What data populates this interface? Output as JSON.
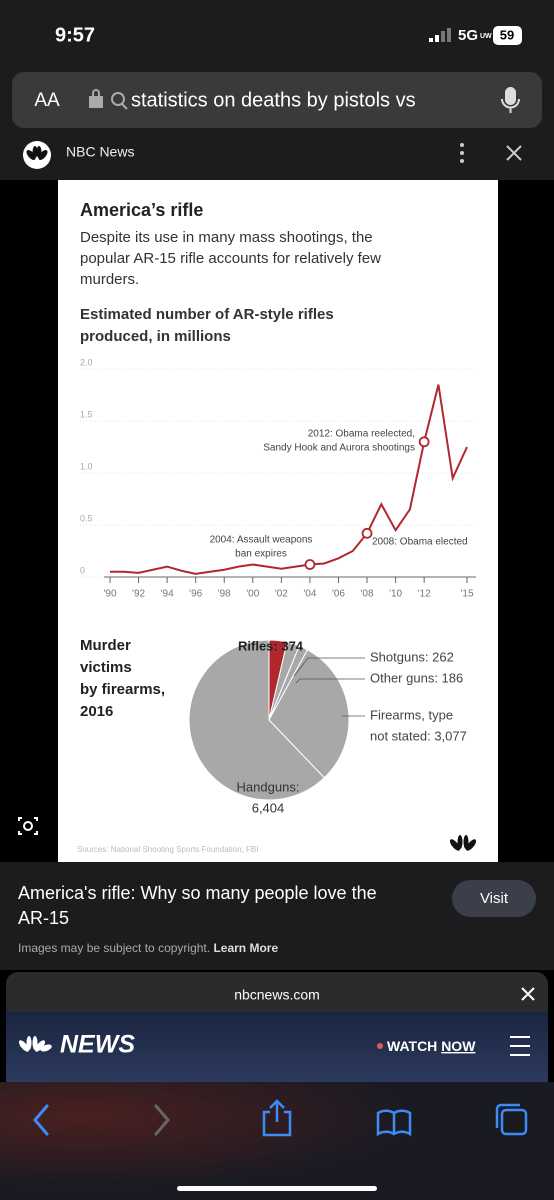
{
  "status_bar": {
    "time": "9:57",
    "network": "5G",
    "network_sub": "UW",
    "battery": "59"
  },
  "address_bar": {
    "text_size": "AA",
    "query": "statistics on deaths by pistols vs"
  },
  "source_bar": {
    "source": "NBC News"
  },
  "image": {
    "chart_data": [
      {
        "type": "line",
        "title": "America’s rifle",
        "subtitle": [
          "Despite its use in many mass shootings, the",
          "popular AR-15 rifle accounts for relatively few",
          "murders."
        ],
        "y_label": [
          "Estimated number of AR-style rifles",
          "produced, in millions"
        ],
        "x": [
          1990,
          1991,
          1992,
          1993,
          1994,
          1995,
          1996,
          1997,
          1998,
          1999,
          2000,
          2001,
          2002,
          2003,
          2004,
          2005,
          2006,
          2007,
          2008,
          2009,
          2010,
          2011,
          2012,
          2013,
          2014,
          2015
        ],
        "values": [
          0.05,
          0.05,
          0.04,
          0.07,
          0.1,
          0.06,
          0.03,
          0.05,
          0.07,
          0.1,
          0.12,
          0.1,
          0.08,
          0.1,
          0.12,
          0.13,
          0.18,
          0.25,
          0.42,
          0.7,
          0.45,
          0.65,
          1.3,
          1.85,
          0.95,
          1.25
        ],
        "color": "#b0282e",
        "xlim": [
          1990,
          2015
        ],
        "xticks": [
          {
            "value": 1990,
            "label": "'90"
          },
          {
            "value": 1992,
            "label": "'92"
          },
          {
            "value": 1994,
            "label": "'94"
          },
          {
            "value": 1996,
            "label": "'96"
          },
          {
            "value": 1998,
            "label": "'98"
          },
          {
            "value": 2000,
            "label": "'00"
          },
          {
            "value": 2002,
            "label": "'02"
          },
          {
            "value": 2004,
            "label": "'04"
          },
          {
            "value": 2006,
            "label": "'06"
          },
          {
            "value": 2008,
            "label": "'08"
          },
          {
            "value": 2010,
            "label": "'10"
          },
          {
            "value": 2012,
            "label": "'12"
          },
          {
            "value": 2015,
            "label": "'15"
          }
        ],
        "ylim": [
          0,
          2
        ],
        "yticks": [
          0,
          0.5,
          {
            "value": 1,
            "label": "1.0"
          },
          1.5,
          {
            "value": 2,
            "label": "2.0"
          }
        ],
        "grid": true,
        "annotations": [
          {
            "x": 2004,
            "lines": [
              "2004: Assault weapons",
              "ban expires"
            ]
          },
          {
            "x": 2008,
            "lines": [
              "2008: Obama elected"
            ]
          },
          {
            "x": 2012,
            "lines": [
              "2012: Obama reelected,",
              "Sandy Hook and Aurora shootings"
            ]
          }
        ]
      },
      {
        "type": "pie",
        "title": [
          "Murder",
          "victims",
          "by firearms,",
          "2016"
        ],
        "categories": [
          "Rifles",
          "Shotguns",
          "Other guns",
          "Firearms, type not stated",
          "Handguns"
        ],
        "values": [
          374,
          262,
          186,
          3077,
          6404
        ],
        "value_labels": [
          [
            "Rifles: 374"
          ],
          [
            "Shotguns: 262"
          ],
          [
            "Other guns: 186"
          ],
          [
            "Firearms, type",
            "not stated: 3,077"
          ],
          [
            "Handguns:",
            "6,404"
          ]
        ],
        "colors": [
          "#b0282e",
          "#a8a8a8",
          "#a8a8a8",
          "#a8a8a8",
          "#a8a8a8"
        ]
      }
    ],
    "sources": "Sources: National Shooting Sports Foundation; FBI"
  },
  "result": {
    "title": [
      "America's rifle: Why so many people love the",
      "AR-15"
    ],
    "button": "Visit",
    "notice": "Images may be subject to copyright.",
    "link": "Learn More"
  },
  "preview": {
    "domain": "nbcnews.com",
    "brand": "NEWS",
    "watch": "WATCH",
    "now": "NOW"
  }
}
